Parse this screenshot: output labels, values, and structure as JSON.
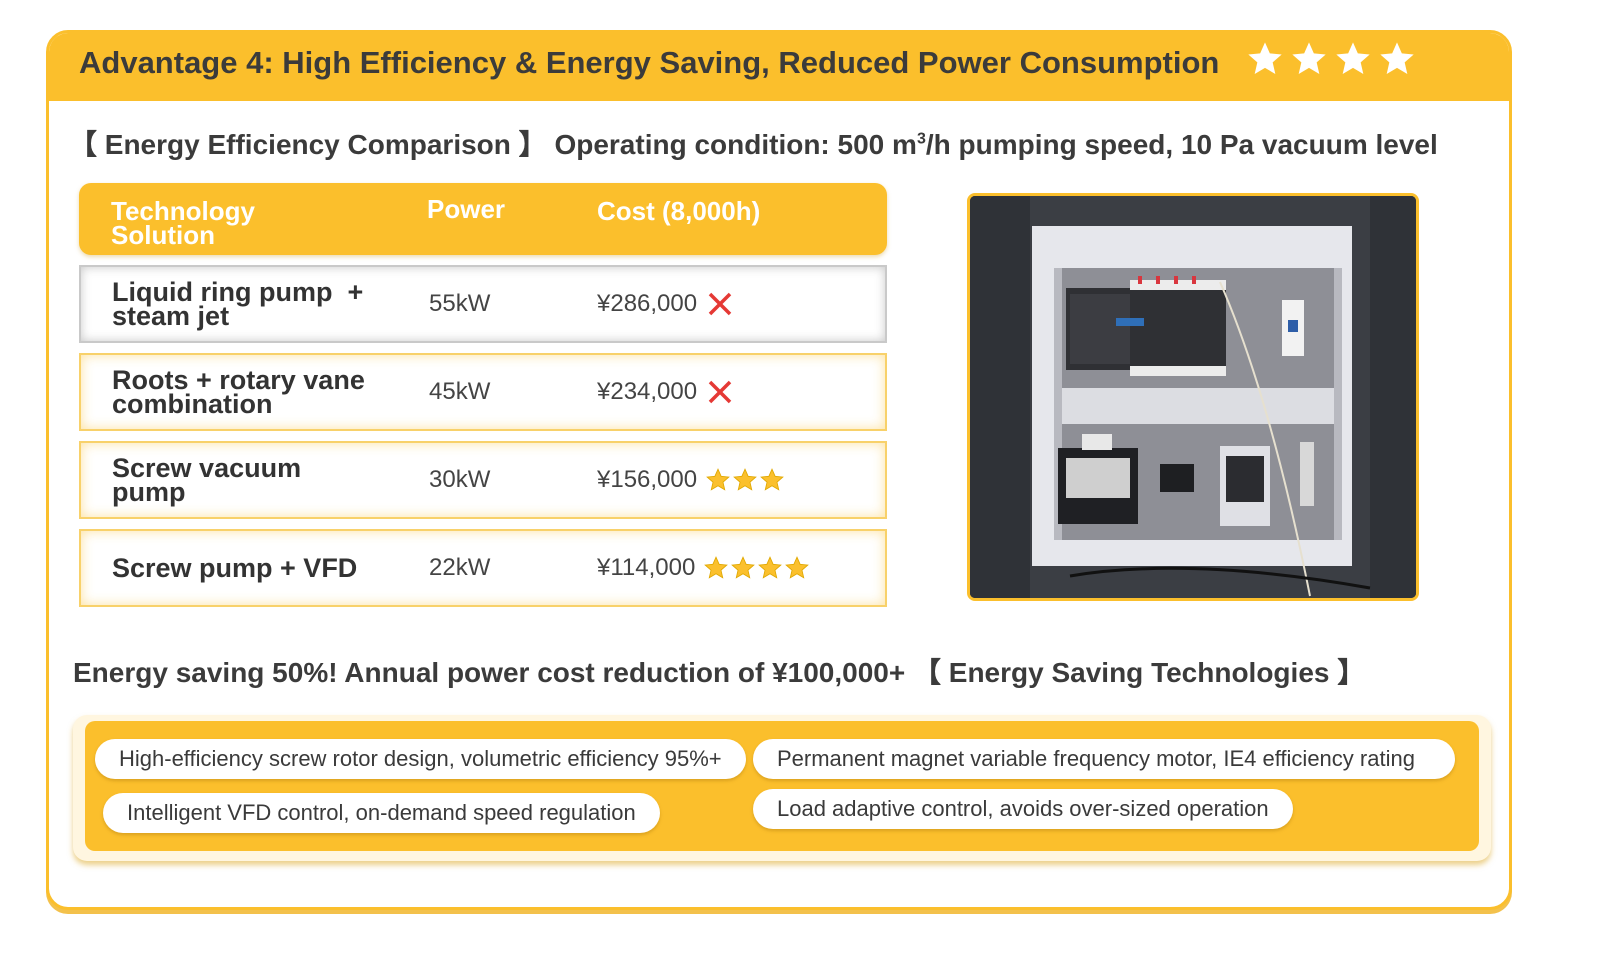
{
  "header": {
    "title": "Advantage 4: High Efficiency & Energy Saving, Reduced Power Consumption",
    "star_rating": 4
  },
  "subtitle": {
    "prefix": "【 Energy Efficiency Comparison 】 Operating condition:  500 m",
    "sup": "3",
    "suffix": "/h pumping speed, 10 Pa vacuum level"
  },
  "table": {
    "headers": {
      "technology": "Technology Solution",
      "power": "Power",
      "cost": "Cost (8,000h)"
    },
    "rows": [
      {
        "name": "Liquid ring pump  + steam jet",
        "power": "55kW",
        "cost": "¥286,000",
        "mark": "cross",
        "stars": 0
      },
      {
        "name": "Roots + rotary vane combination",
        "power": "45kW",
        "cost": "¥234,000",
        "mark": "cross",
        "stars": 0
      },
      {
        "name": "Screw vacuum pump",
        "power": "30kW",
        "cost": "¥156,000",
        "mark": "stars",
        "stars": 3
      },
      {
        "name": "Screw pump + VFD",
        "power": "22kW",
        "cost": "¥114,000",
        "mark": "stars",
        "stars": 4
      }
    ]
  },
  "photo": {
    "icon": "control-cabinet-photo"
  },
  "saving": {
    "text": "Energy saving 50%! Annual power cost reduction of ¥100,000+ 【 Energy Saving Technologies 】"
  },
  "technologies": [
    "High-efficiency screw rotor design, volumetric efficiency 95%+",
    "Permanent magnet variable frequency motor, IE4 efficiency rating",
    "Intelligent VFD control, on-demand speed regulation",
    "Load adaptive control, avoids over-sized operation"
  ],
  "colors": {
    "accent": "#fbbf2c",
    "text": "#3b3b3b",
    "cross": "#e53935",
    "star": "#fbc02d"
  }
}
